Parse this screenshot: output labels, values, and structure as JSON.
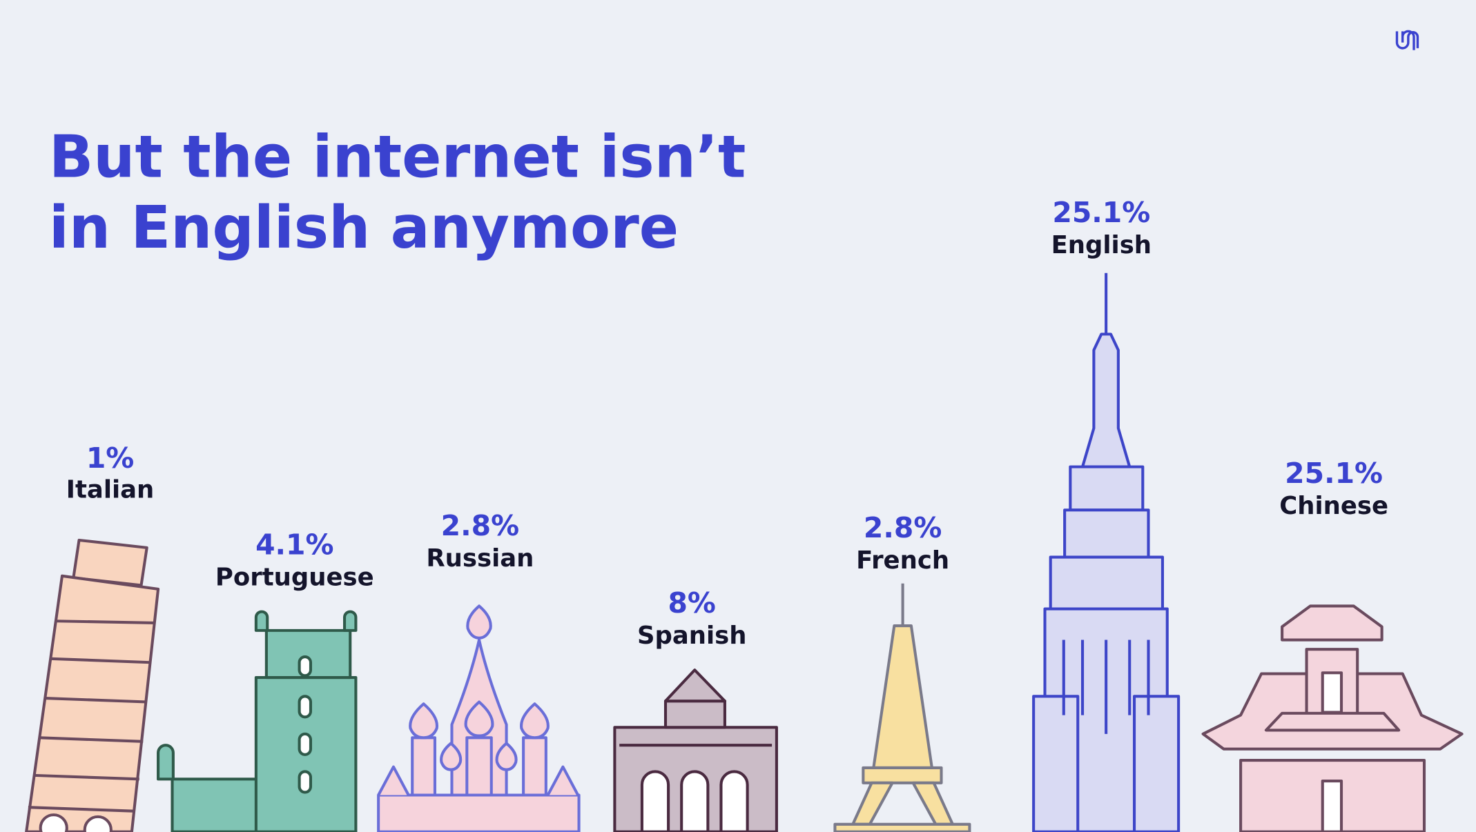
{
  "title_lines": [
    "But the internet isn’t",
    "in English anymore"
  ],
  "languages": [
    {
      "share": "1%",
      "name": "Italian"
    },
    {
      "share": "4.1%",
      "name": "Portuguese"
    },
    {
      "share": "2.8%",
      "name": "Russian"
    },
    {
      "share": "8%",
      "name": "Spanish"
    },
    {
      "share": "2.8%",
      "name": "French"
    },
    {
      "share": "25.1%",
      "name": "English"
    },
    {
      "share": "25.1%",
      "name": "Chinese"
    }
  ]
}
